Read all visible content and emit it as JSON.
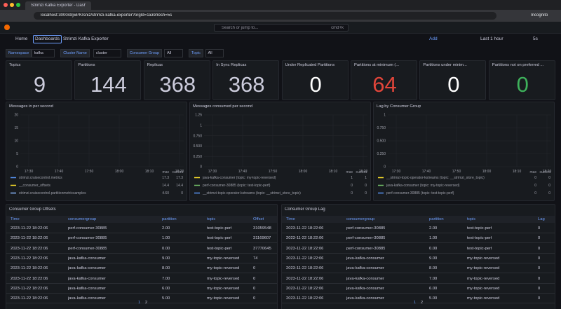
{
  "browser": {
    "tab": "Strimzi Kafka Exporter - Dash...",
    "url": "localhost:3000/d/jwPKIsniz/strimzi-kafka-exporter?orgId=1&refresh=5s",
    "profile": "Incognito"
  },
  "topbar": {
    "search": "Search or jump to...",
    "shortcut": "cmd+k"
  },
  "breadcrumb": {
    "items": [
      "Home",
      "Dashboards",
      "Strimzi Kafka Exporter"
    ],
    "add": "Add",
    "time_range": "Last 1 hour",
    "refresh": "5s"
  },
  "variables": [
    {
      "label": "Namespace",
      "value": "kafka"
    },
    {
      "label": "Cluster Name",
      "value": "cluster"
    },
    {
      "label": "Consumer Group",
      "value": "All"
    },
    {
      "label": "Topic",
      "value": "All"
    }
  ],
  "stats": [
    {
      "title": "Topics",
      "value": "9",
      "color": "#ccccdc"
    },
    {
      "title": "Partitions",
      "value": "144",
      "color": "#ccccdc"
    },
    {
      "title": "Replicas",
      "value": "368",
      "color": "#ccccdc"
    },
    {
      "title": "In Sync Replicas",
      "value": "368",
      "color": "#ccccdc"
    },
    {
      "title": "Under Replicated Partitions",
      "value": "0",
      "color": "#ffffff"
    },
    {
      "title": "Partitions at minimum (...",
      "value": "64",
      "color": "#e0453a"
    },
    {
      "title": "Partitions under minim...",
      "value": "0",
      "color": "#ffffff"
    },
    {
      "title": "Partitions not on preferred ...",
      "value": "0",
      "color": "#3eb15b"
    }
  ],
  "panels": [
    {
      "title": "Messages in per second",
      "yticks": [
        0,
        5,
        10,
        15,
        20
      ],
      "xticks": [
        "17:30",
        "17:40",
        "17:50",
        "18:00",
        "18:10",
        "18:20"
      ],
      "legend_headers": [
        "max",
        "current"
      ],
      "series": [
        {
          "name": "strimzi.cruisecontrol.metrics",
          "color": "#5794f2",
          "max": "17.3",
          "current": "17.3"
        },
        {
          "name": "__consumer_offsets",
          "color": "#fade2a",
          "max": "14.4",
          "current": "14.4"
        },
        {
          "name": "strimzi.cruisecontrol.partitionmetricsamples",
          "color": "#8ab8ff",
          "max": "4.60",
          "current": "0"
        }
      ]
    },
    {
      "title": "Messages consumed per second",
      "yticks": [
        0,
        {
          "value": 0.25,
          "label": "0.250"
        },
        {
          "value": 0.5,
          "label": "0.500"
        },
        {
          "value": 0.75,
          "label": "0.750"
        },
        1,
        1.25
      ],
      "xticks": [
        "17:30",
        "17:40",
        "17:50",
        "18:00",
        "18:10",
        "18:20"
      ],
      "legend_headers": [
        "max",
        "current"
      ],
      "series": [
        {
          "name": "java-kafka-consumer (topic: my-topic-reversed)",
          "color": "#fade2a",
          "max": "1",
          "current": "1"
        },
        {
          "name": "perf-consumer-30885 (topic: test-topic-perf)",
          "color": "#73bf69",
          "max": "0",
          "current": "0"
        },
        {
          "name": "__strimzi-topic-operator-kstreams (topic: __strimzi_store_topic)",
          "color": "#5794f2",
          "max": "0",
          "current": "0"
        }
      ]
    },
    {
      "title": "Lag by Consumer Group",
      "yticks": [
        0,
        {
          "value": 0.25,
          "label": "0.250"
        },
        {
          "value": 0.5,
          "label": "0.500"
        },
        {
          "value": 0.75,
          "label": "0.750"
        },
        1
      ],
      "xticks": [
        "17:30",
        "17:40",
        "17:50",
        "18:00",
        "18:10",
        "18:20"
      ],
      "legend_headers": [
        "max",
        "current"
      ],
      "series": [
        {
          "name": "__strimzi-topic-operator-kstreams (topic: __strimzi_store_topic)",
          "color": "#fade2a",
          "max": "0",
          "current": "0"
        },
        {
          "name": "java-kafka-consumer (topic: my-topic-reversed)",
          "color": "#73bf69",
          "max": "0",
          "current": "0"
        },
        {
          "name": "perf-consumer-30885 (topic: test-topic-perf)",
          "color": "#5794f2",
          "max": "0",
          "current": "0"
        }
      ]
    }
  ],
  "tables": [
    {
      "title": "Consumer Group Offsets",
      "columns": [
        "Time",
        "consumergroup",
        "partition",
        "topic",
        "Offset"
      ],
      "pages": [
        "1",
        "2"
      ],
      "rows": [
        [
          "2023-11-22 18:22:06",
          "perf-consumer-30885",
          "2.00",
          "test-topic-perf",
          "31059548"
        ],
        [
          "2023-11-22 18:22:06",
          "perf-consumer-30885",
          "1.00",
          "test-topic-perf",
          "31169607"
        ],
        [
          "2023-11-22 18:22:06",
          "perf-consumer-30885",
          "0.00",
          "test-topic-perf",
          "37770645"
        ],
        [
          "2023-11-22 18:22:06",
          "java-kafka-consumer",
          "9.00",
          "my-topic-reversed",
          "74"
        ],
        [
          "2023-11-22 18:22:06",
          "java-kafka-consumer",
          "8.00",
          "my-topic-reversed",
          "0"
        ],
        [
          "2023-11-22 18:22:06",
          "java-kafka-consumer",
          "7.00",
          "my-topic-reversed",
          "0"
        ],
        [
          "2023-11-22 18:22:06",
          "java-kafka-consumer",
          "6.00",
          "my-topic-reversed",
          "0"
        ],
        [
          "2023-11-22 18:22:06",
          "java-kafka-consumer",
          "5.00",
          "my-topic-reversed",
          "0"
        ]
      ]
    },
    {
      "title": "Consumer Group Lag",
      "columns": [
        "Time",
        "consumergroup",
        "partition",
        "topic",
        "Lag"
      ],
      "pages": [
        "1",
        "2"
      ],
      "rows": [
        [
          "2023-11-22 18:22:06",
          "perf-consumer-30885",
          "2.00",
          "test-topic-perf",
          "0"
        ],
        [
          "2023-11-22 18:22:06",
          "perf-consumer-30885",
          "1.00",
          "test-topic-perf",
          "0"
        ],
        [
          "2023-11-22 18:22:06",
          "perf-consumer-30885",
          "0.00",
          "test-topic-perf",
          "0"
        ],
        [
          "2023-11-22 18:22:06",
          "java-kafka-consumer",
          "9.00",
          "my-topic-reversed",
          "0"
        ],
        [
          "2023-11-22 18:22:06",
          "java-kafka-consumer",
          "8.00",
          "my-topic-reversed",
          "0"
        ],
        [
          "2023-11-22 18:22:06",
          "java-kafka-consumer",
          "7.00",
          "my-topic-reversed",
          "0"
        ],
        [
          "2023-11-22 18:22:06",
          "java-kafka-consumer",
          "6.00",
          "my-topic-reversed",
          "0"
        ],
        [
          "2023-11-22 18:22:06",
          "java-kafka-consumer",
          "5.00",
          "my-topic-reversed",
          "0"
        ]
      ]
    }
  ]
}
